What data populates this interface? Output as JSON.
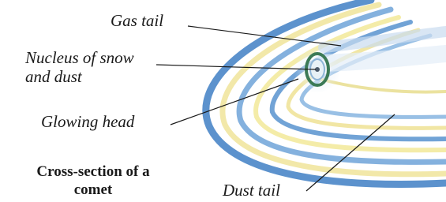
{
  "labels": [
    {
      "lines": [
        "Gas tail"
      ]
    },
    {
      "lines": [
        "Nucleus of snow",
        "and dust"
      ]
    },
    {
      "lines": [
        "Glowing head"
      ]
    },
    {
      "lines": [
        "Dust tail"
      ]
    }
  ],
  "caption": {
    "lines": [
      "Cross-section of a",
      "comet"
    ]
  }
}
